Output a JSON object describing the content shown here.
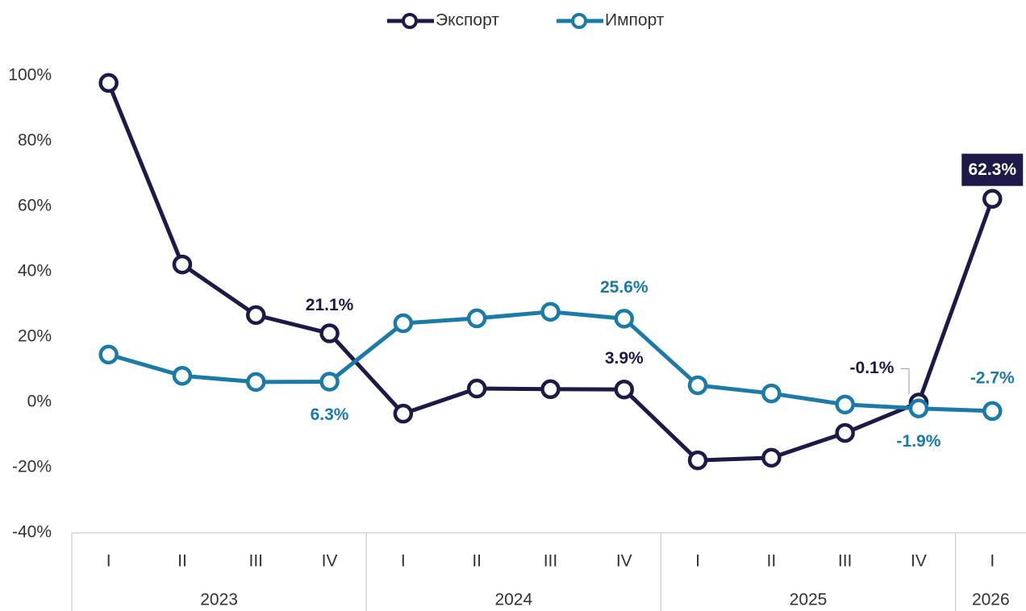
{
  "chart_data": {
    "type": "line",
    "groups": [
      {
        "name": "2023",
        "categories": [
          "I",
          "II",
          "III",
          "IV"
        ]
      },
      {
        "name": "2024",
        "categories": [
          "I",
          "II",
          "III",
          "IV"
        ]
      },
      {
        "name": "2025",
        "categories": [
          "I",
          "II",
          "III",
          "IV"
        ]
      },
      {
        "name": "2026",
        "categories": [
          "I"
        ]
      }
    ],
    "series": [
      {
        "name": "Экспорт",
        "color": "#1d1a4a",
        "values": [
          97.8,
          42.2,
          26.7,
          21.1,
          -3.5,
          4.2,
          4.0,
          3.9,
          -17.8,
          -17.0,
          -9.4,
          -0.1,
          62.3
        ],
        "value_labels": [
          null,
          null,
          null,
          "21.1%",
          null,
          null,
          null,
          "3.9%",
          null,
          null,
          null,
          "-0.1%",
          "62.3%"
        ]
      },
      {
        "name": "Импорт",
        "color": "#1a7aa8",
        "values": [
          14.6,
          8.1,
          6.2,
          6.3,
          24.2,
          25.7,
          27.7,
          25.6,
          5.2,
          2.7,
          -0.7,
          -1.9,
          -2.7
        ],
        "value_labels": [
          null,
          null,
          null,
          "6.3%",
          null,
          null,
          null,
          "25.6%",
          null,
          null,
          null,
          "-1.9%",
          "-2.7%"
        ]
      }
    ],
    "ylim": [
      -40,
      100
    ],
    "yticks": [
      {
        "value": -40,
        "label": "-40%"
      },
      {
        "value": -20,
        "label": "-20%"
      },
      {
        "value": 0,
        "label": "0%"
      },
      {
        "value": 20,
        "label": "20%"
      },
      {
        "value": 40,
        "label": "40%"
      },
      {
        "value": 60,
        "label": "60%"
      },
      {
        "value": 80,
        "label": "80%"
      },
      {
        "value": 100,
        "label": "100%"
      }
    ],
    "legend": "top"
  }
}
